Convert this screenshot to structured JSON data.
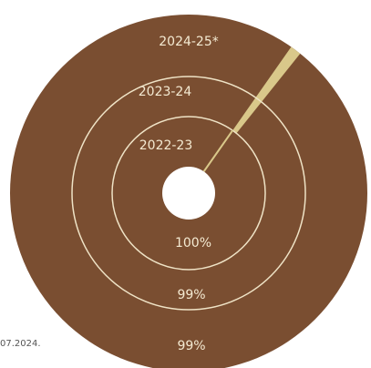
{
  "chart_data": {
    "type": "pie",
    "title": "",
    "rings": [
      {
        "label": "2022-23",
        "value_label": "100%",
        "share": 100
      },
      {
        "label": "2023-24",
        "value_label": "99%",
        "share": 99
      },
      {
        "label": "2024-25*",
        "value_label": "99%",
        "share": 99
      }
    ],
    "colors": {
      "main": "#7a4e31",
      "remainder": "#d9c88a",
      "divider": "#efe3c6",
      "center": "#ffffff"
    }
  },
  "footnote": "07.2024."
}
